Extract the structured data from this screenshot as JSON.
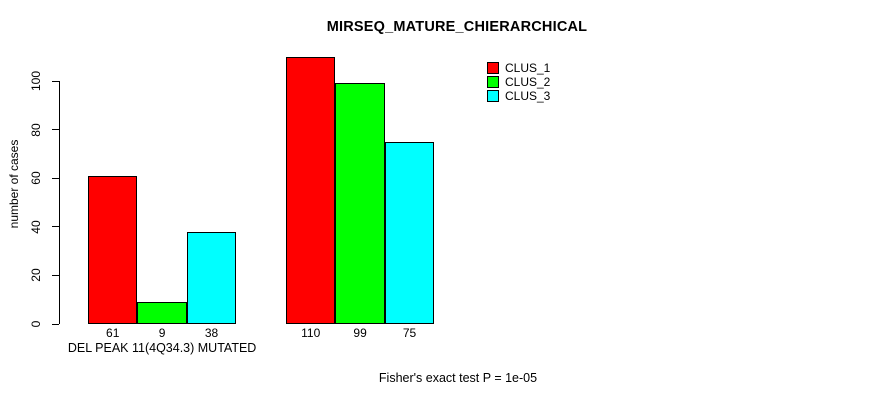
{
  "chart_data": {
    "type": "bar",
    "title": "MIRSEQ_MATURE_CHIERARCHICAL",
    "ylabel": "number of cases",
    "xlabel": "",
    "categories": [
      "DEL PEAK 11(4Q34.3) MUTATED",
      ""
    ],
    "series": [
      {
        "name": "CLUS_1",
        "color": "#ff0000",
        "values": [
          61,
          110
        ]
      },
      {
        "name": "CLUS_2",
        "color": "#00ff00",
        "values": [
          9,
          99
        ]
      },
      {
        "name": "CLUS_3",
        "color": "#00ffff",
        "values": [
          38,
          75
        ]
      }
    ],
    "yticks": [
      0,
      20,
      40,
      60,
      80,
      100
    ],
    "ylim": [
      0,
      110
    ],
    "grid": false,
    "legend_position": "top-right",
    "legend_entries": [
      "CLUS_1",
      "CLUS_2",
      "CLUS_3"
    ],
    "bar_value_labels": [
      [
        61,
        9,
        38
      ],
      [
        110,
        99,
        75
      ]
    ],
    "annotation": "Fisher's exact test P = 1e-05"
  }
}
